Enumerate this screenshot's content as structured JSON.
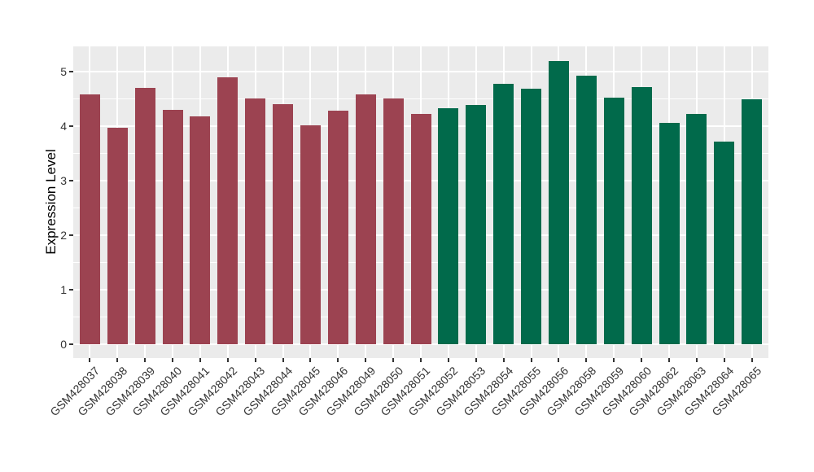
{
  "colors": {
    "panel_background": "#ebebeb",
    "gridline": "#ffffff",
    "axis_text": "#333333",
    "axis_title": "#000000",
    "group1_red": "#9c4351",
    "group2_green": "#016a4b"
  },
  "chart_data": {
    "type": "bar",
    "title": "",
    "xlabel": "",
    "ylabel": "Expression Level",
    "legend_position": "none",
    "grid": "white major and minor gridlines on gray panel",
    "categories": [
      "GSM428037",
      "GSM428038",
      "GSM428039",
      "GSM428040",
      "GSM428041",
      "GSM428042",
      "GSM428043",
      "GSM428044",
      "GSM428045",
      "GSM428046",
      "GSM428049",
      "GSM428050",
      "GSM428051",
      "GSM428052",
      "GSM428053",
      "GSM428054",
      "GSM428055",
      "GSM428056",
      "GSM428058",
      "GSM428059",
      "GSM428060",
      "GSM428062",
      "GSM428063",
      "GSM428064",
      "GSM428065"
    ],
    "values": [
      4.58,
      3.97,
      4.7,
      4.3,
      4.18,
      4.9,
      4.51,
      4.4,
      4.01,
      4.28,
      4.58,
      4.51,
      4.22,
      4.33,
      4.39,
      4.77,
      4.68,
      5.2,
      4.93,
      4.53,
      4.71,
      4.06,
      4.22,
      3.72,
      4.5
    ],
    "group_colors": [
      "#9c4351",
      "#016a4b"
    ],
    "bar_groups": [
      0,
      0,
      0,
      0,
      0,
      0,
      0,
      0,
      0,
      0,
      0,
      0,
      0,
      1,
      1,
      1,
      1,
      1,
      1,
      1,
      1,
      1,
      1,
      1,
      1
    ],
    "yticks": [
      0,
      1,
      2,
      3,
      4,
      5
    ],
    "ylim": [
      -0.25,
      5.46
    ]
  }
}
